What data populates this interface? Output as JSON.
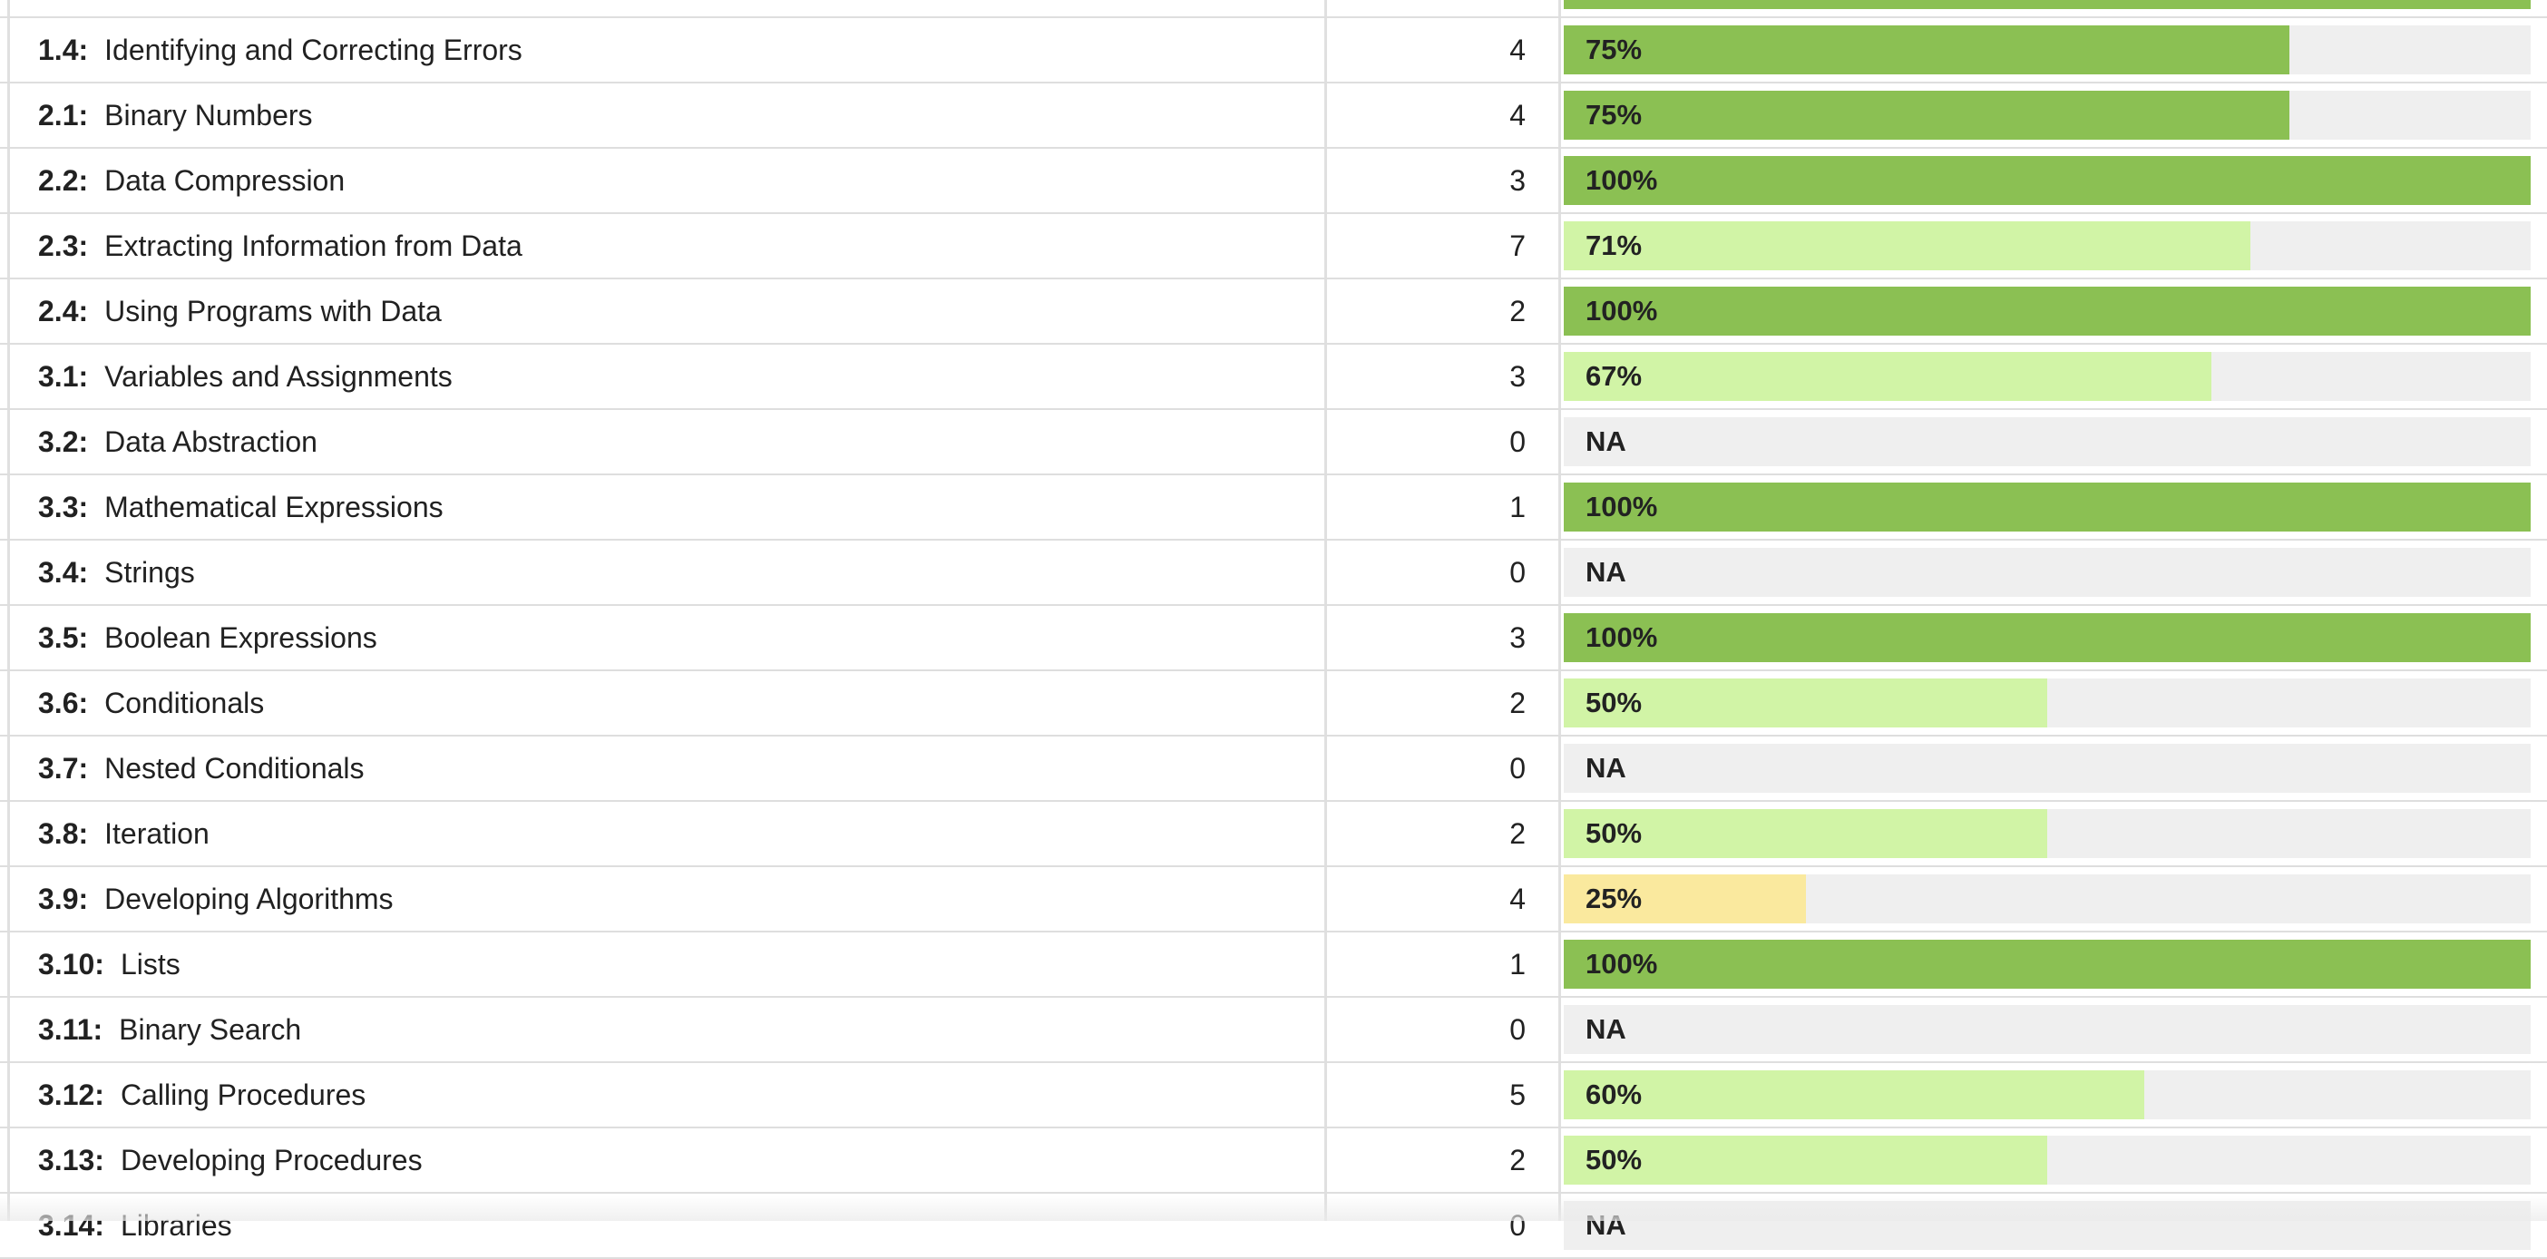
{
  "colors": {
    "strong": "#8bc053",
    "moderate": "#d1f4a6",
    "weak": "#fae99e",
    "empty_track": "#efefef"
  },
  "rows": [
    {
      "code": "",
      "title": "",
      "count": "",
      "percent_label": "",
      "percent": 1.0,
      "level": "strong"
    },
    {
      "code": "1.4:",
      "title": "Identifying and Correcting Errors",
      "count": "4",
      "percent_label": "75%",
      "percent": 0.75,
      "level": "strong"
    },
    {
      "code": "2.1:",
      "title": "Binary Numbers",
      "count": "4",
      "percent_label": "75%",
      "percent": 0.75,
      "level": "strong"
    },
    {
      "code": "2.2:",
      "title": "Data Compression",
      "count": "3",
      "percent_label": "100%",
      "percent": 1.0,
      "level": "strong"
    },
    {
      "code": "2.3:",
      "title": "Extracting Information from Data",
      "count": "7",
      "percent_label": "71%",
      "percent": 0.71,
      "level": "moderate"
    },
    {
      "code": "2.4:",
      "title": "Using Programs with Data",
      "count": "2",
      "percent_label": "100%",
      "percent": 1.0,
      "level": "strong"
    },
    {
      "code": "3.1:",
      "title": "Variables and Assignments",
      "count": "3",
      "percent_label": "67%",
      "percent": 0.67,
      "level": "moderate"
    },
    {
      "code": "3.2:",
      "title": "Data Abstraction",
      "count": "0",
      "percent_label": "NA",
      "percent": 0,
      "level": "none"
    },
    {
      "code": "3.3:",
      "title": "Mathematical Expressions",
      "count": "1",
      "percent_label": "100%",
      "percent": 1.0,
      "level": "strong"
    },
    {
      "code": "3.4:",
      "title": "Strings",
      "count": "0",
      "percent_label": "NA",
      "percent": 0,
      "level": "none"
    },
    {
      "code": "3.5:",
      "title": "Boolean Expressions",
      "count": "3",
      "percent_label": "100%",
      "percent": 1.0,
      "level": "strong"
    },
    {
      "code": "3.6:",
      "title": "Conditionals",
      "count": "2",
      "percent_label": "50%",
      "percent": 0.5,
      "level": "moderate"
    },
    {
      "code": "3.7:",
      "title": "Nested Conditionals",
      "count": "0",
      "percent_label": "NA",
      "percent": 0,
      "level": "none"
    },
    {
      "code": "3.8:",
      "title": "Iteration",
      "count": "2",
      "percent_label": "50%",
      "percent": 0.5,
      "level": "moderate"
    },
    {
      "code": "3.9:",
      "title": "Developing Algorithms",
      "count": "4",
      "percent_label": "25%",
      "percent": 0.25,
      "level": "weak"
    },
    {
      "code": "3.10:",
      "title": "Lists",
      "count": "1",
      "percent_label": "100%",
      "percent": 1.0,
      "level": "strong"
    },
    {
      "code": "3.11:",
      "title": "Binary Search",
      "count": "0",
      "percent_label": "NA",
      "percent": 0,
      "level": "none"
    },
    {
      "code": "3.12:",
      "title": "Calling Procedures",
      "count": "5",
      "percent_label": "60%",
      "percent": 0.6,
      "level": "moderate"
    },
    {
      "code": "3.13:",
      "title": "Developing Procedures",
      "count": "2",
      "percent_label": "50%",
      "percent": 0.5,
      "level": "moderate"
    },
    {
      "code": "3.14:",
      "title": "Libraries",
      "count": "0",
      "percent_label": "NA",
      "percent": 0,
      "level": "none"
    }
  ]
}
